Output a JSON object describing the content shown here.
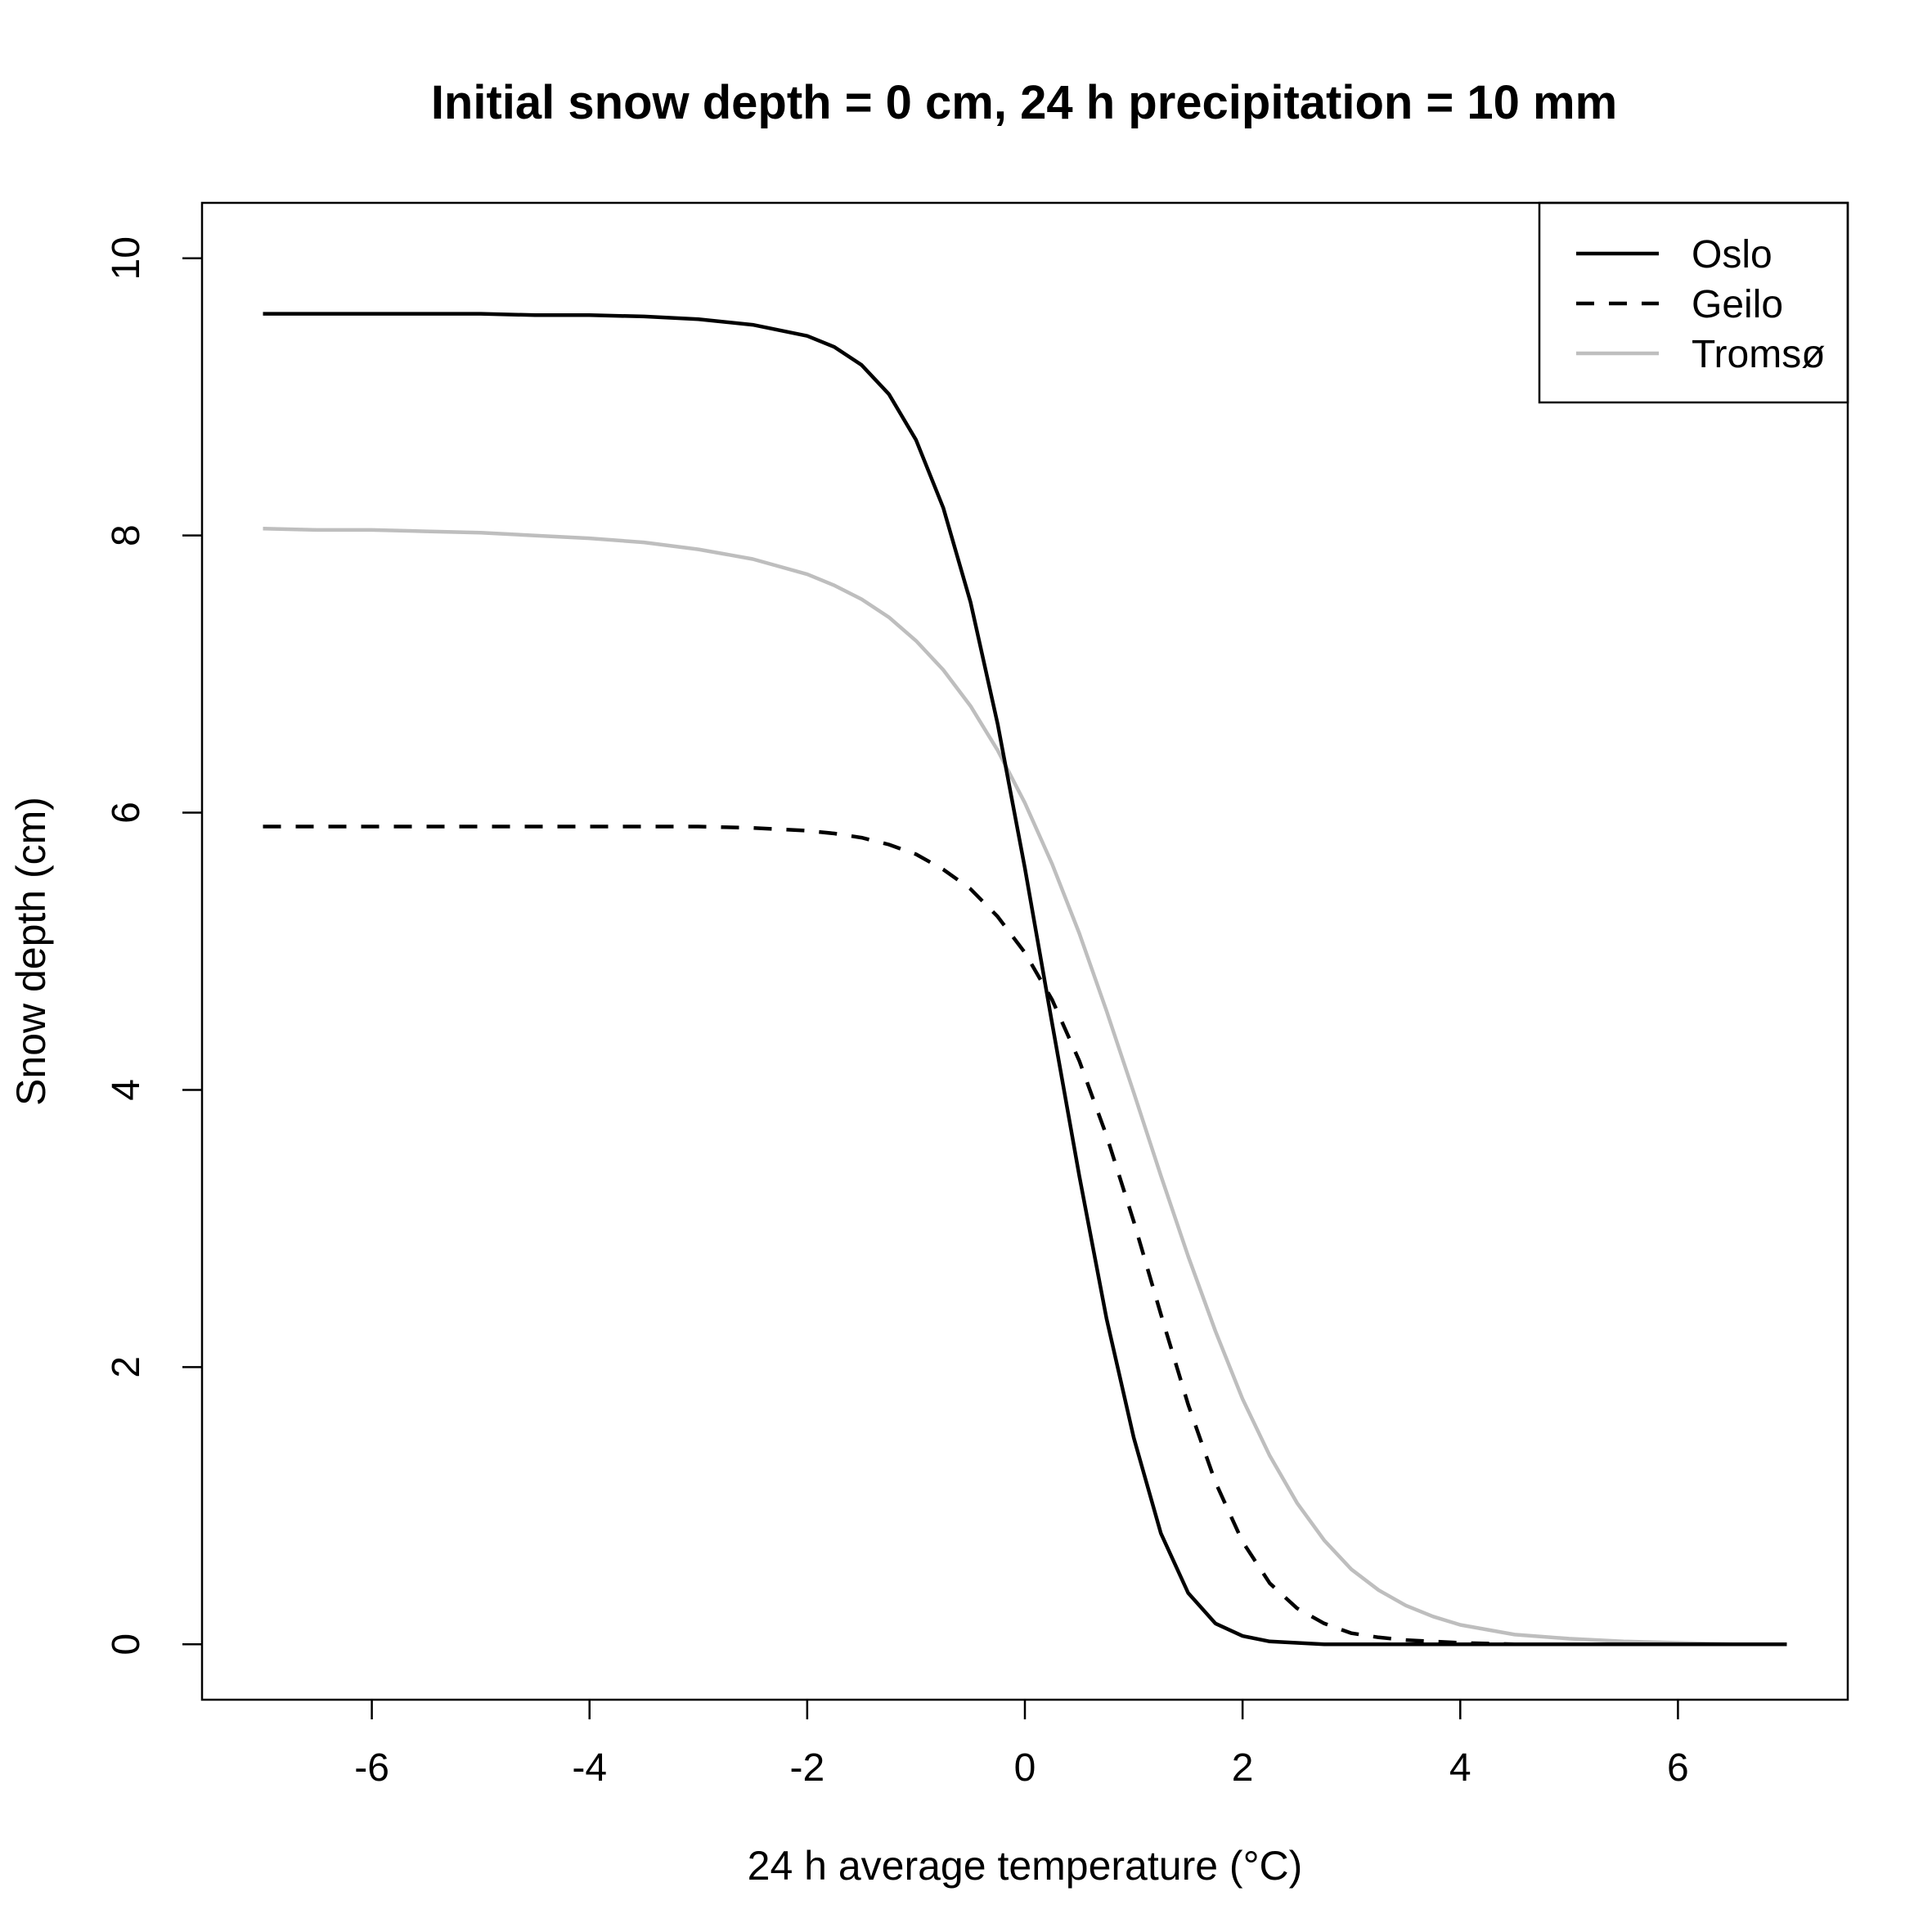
{
  "chart_data": {
    "type": "line",
    "title": "Initial snow depth = 0 cm, 24 h precipitation = 10 mm",
    "xlabel": "24 h average temperature (°C)",
    "ylabel": "Snow depth (cm)",
    "xlim": [
      -7.56,
      7.56
    ],
    "ylim": [
      -0.4,
      10.4
    ],
    "xticks": [
      -6,
      -4,
      -2,
      0,
      2,
      4,
      6
    ],
    "yticks": [
      0,
      2,
      4,
      6,
      8,
      10
    ],
    "grid": false,
    "legend_position": "top-right",
    "x": [
      -7,
      -6.5,
      -6,
      -5.5,
      -5,
      -4.5,
      -4,
      -3.5,
      -3,
      -2.5,
      -2,
      -1.75,
      -1.5,
      -1.25,
      -1,
      -0.75,
      -0.5,
      -0.25,
      0,
      0.25,
      0.5,
      0.75,
      1,
      1.25,
      1.5,
      1.75,
      2,
      2.25,
      2.5,
      2.75,
      3,
      3.25,
      3.5,
      3.75,
      4,
      4.5,
      5,
      5.5,
      6,
      6.5,
      7
    ],
    "series": [
      {
        "name": "Oslo",
        "color": "#000000",
        "dash": "solid",
        "values": [
          9.6,
          9.6,
          9.6,
          9.6,
          9.6,
          9.59,
          9.59,
          9.58,
          9.56,
          9.52,
          9.44,
          9.36,
          9.23,
          9.02,
          8.69,
          8.2,
          7.52,
          6.64,
          5.6,
          4.48,
          3.38,
          2.35,
          1.49,
          0.8,
          0.37,
          0.15,
          0.06,
          0.02,
          0.01,
          0.0,
          0.0,
          0.0,
          0.0,
          0.0,
          0.0,
          0.0,
          0.0,
          0.0,
          0.0,
          0.0,
          0.0
        ]
      },
      {
        "name": "Geilo",
        "color": "#000000",
        "dash": "dashed",
        "values": [
          5.9,
          5.9,
          5.9,
          5.9,
          5.9,
          5.9,
          5.9,
          5.9,
          5.9,
          5.89,
          5.87,
          5.85,
          5.82,
          5.77,
          5.7,
          5.59,
          5.45,
          5.25,
          4.99,
          4.65,
          4.21,
          3.67,
          3.05,
          2.38,
          1.73,
          1.17,
          0.74,
          0.44,
          0.26,
          0.15,
          0.08,
          0.05,
          0.03,
          0.02,
          0.01,
          0.0,
          0.0,
          0.0,
          0.0,
          0.0,
          0.0
        ]
      },
      {
        "name": "Tromsø",
        "color": "#bebebe",
        "dash": "solid",
        "values": [
          8.05,
          8.04,
          8.04,
          8.03,
          8.02,
          8.0,
          7.98,
          7.95,
          7.9,
          7.83,
          7.72,
          7.64,
          7.54,
          7.41,
          7.24,
          7.03,
          6.77,
          6.45,
          6.07,
          5.63,
          5.13,
          4.57,
          3.98,
          3.38,
          2.8,
          2.26,
          1.77,
          1.36,
          1.02,
          0.75,
          0.54,
          0.39,
          0.28,
          0.2,
          0.14,
          0.07,
          0.04,
          0.02,
          0.01,
          0.0,
          0.0
        ]
      }
    ]
  }
}
